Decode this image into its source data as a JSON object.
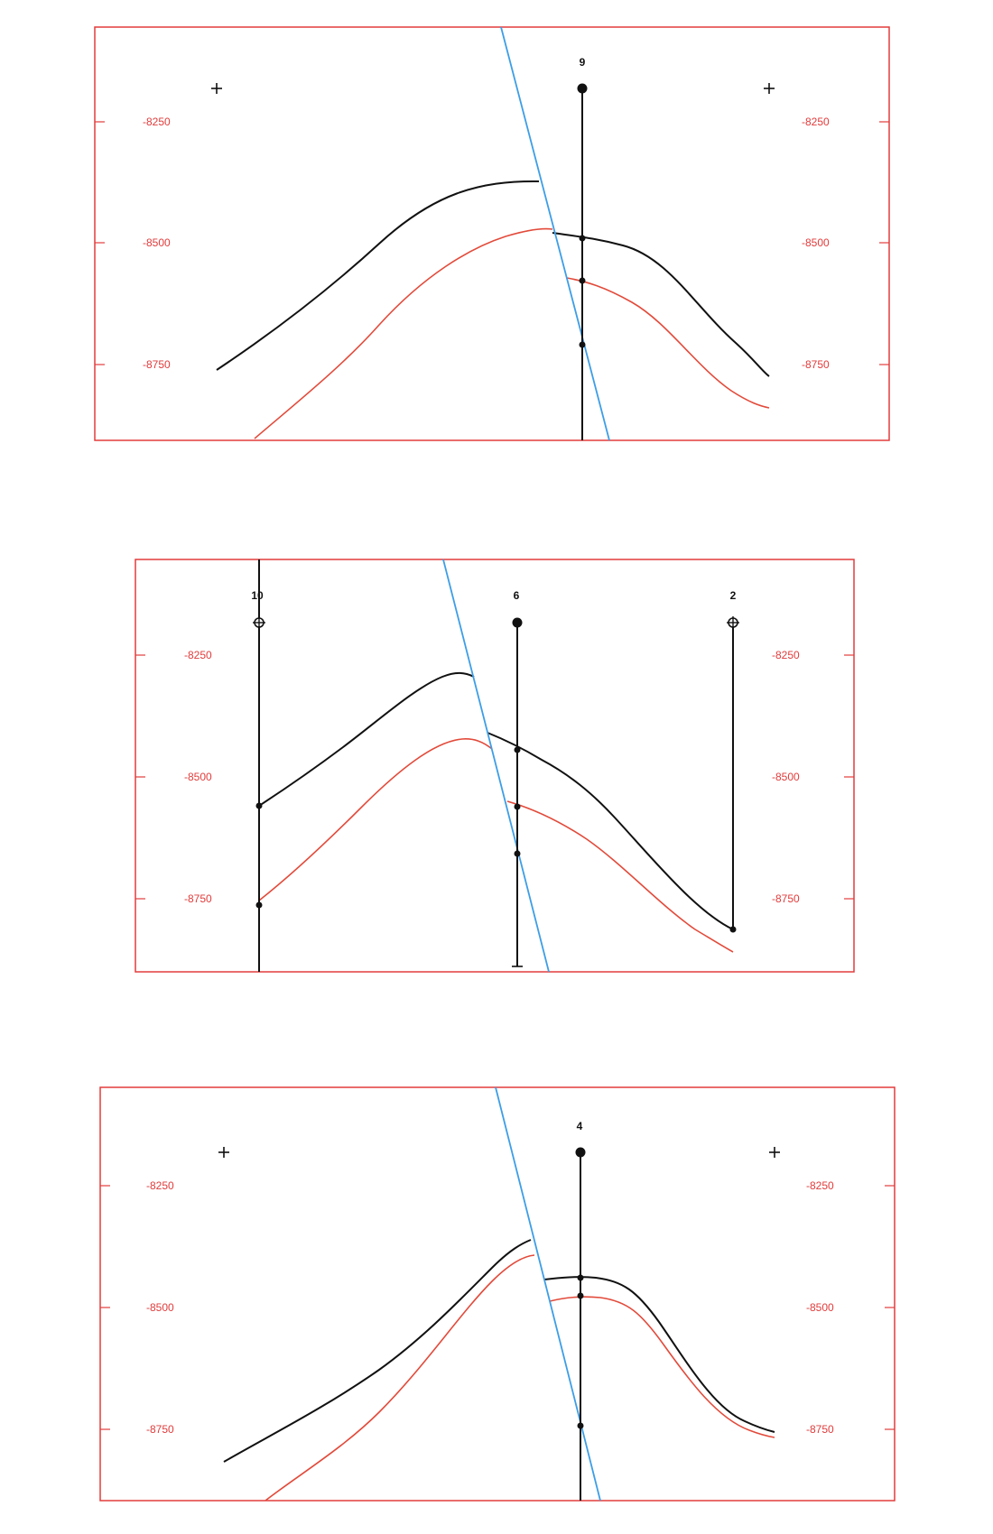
{
  "colors": {
    "frame": "#e33c3c",
    "tick_label": "#e23b3b",
    "structure_top": "#111111",
    "structure_base": "#e24a3a",
    "fault": "#3d9ee6",
    "well": "#111111",
    "tick_mark": "#e33c3c"
  },
  "icons": {
    "well_filled": "filled-circle-well-symbol",
    "well_open": "open-circle-cross-well-symbol",
    "grid_marker": "plus-marker"
  },
  "sections": [
    {
      "id": "top",
      "depth_labels_left": [
        "-8250",
        "-8500",
        "-8750"
      ],
      "depth_labels_right": [
        "-8250",
        "-8500",
        "-8750"
      ],
      "wells": [
        {
          "label": "9",
          "symbol": "well_filled"
        }
      ]
    },
    {
      "id": "middle",
      "depth_labels_left": [
        "-8250",
        "-8500",
        "-8750"
      ],
      "depth_labels_right": [
        "-8250",
        "-8500",
        "-8750"
      ],
      "wells": [
        {
          "label": "10",
          "symbol": "well_open"
        },
        {
          "label": "6",
          "symbol": "well_filled"
        },
        {
          "label": "2",
          "symbol": "well_open"
        }
      ]
    },
    {
      "id": "bottom",
      "depth_labels_left": [
        "-8250",
        "-8500",
        "-8750"
      ],
      "depth_labels_right": [
        "-8250",
        "-8500",
        "-8750"
      ],
      "wells": [
        {
          "label": "4",
          "symbol": "well_filled"
        }
      ]
    }
  ]
}
